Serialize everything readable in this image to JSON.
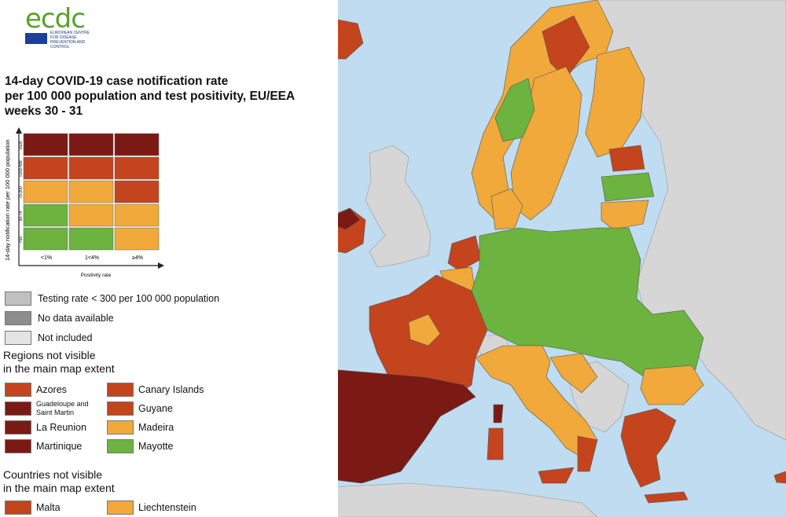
{
  "colors": {
    "sea": "#bfdcf0",
    "dark_red": "#7b1a14",
    "red": "#c4441e",
    "orange": "#f0a93a",
    "green": "#6db33f",
    "grey_testing": "#c0c0c0",
    "grey_nodata": "#8c8c8c",
    "not_included": "#e4e4e4",
    "logo_green": "#5aa02c"
  },
  "logo": {
    "text": "ecdc",
    "subtitle": "EUROPEAN CENTRE FOR DISEASE PREVENTION AND CONTROL"
  },
  "title": {
    "line1": "14-day COVID-19 case notification rate",
    "line2": "per 100 000 population and test positivity, EU/EEA",
    "line3": "weeks 30 - 31"
  },
  "matrix": {
    "y_axis_label": "14-day notification rate per 100 000 population",
    "x_axis_label": "Positivity rate",
    "row_labels": [
      "≥500",
      ">200-499",
      "75-200",
      "50-74",
      "<50"
    ],
    "col_labels": [
      "<1%",
      "1<4%",
      "≥4%"
    ],
    "cells": [
      [
        "dark_red",
        "dark_red",
        "dark_red"
      ],
      [
        "red",
        "red",
        "red"
      ],
      [
        "orange",
        "orange",
        "red"
      ],
      [
        "green",
        "orange",
        "orange"
      ],
      [
        "green",
        "green",
        "orange"
      ]
    ]
  },
  "legend": {
    "testing": "Testing rate < 300 per 100 000 population",
    "no_data": "No data available",
    "not_included": "Not included"
  },
  "regions": {
    "heading_line1": "Regions not visible",
    "heading_line2": "in the main map extent",
    "items": [
      {
        "name": "Azores",
        "color": "red"
      },
      {
        "name": "Canary Islands",
        "color": "red"
      },
      {
        "name": "Guadeloupe and Saint Martin",
        "color": "dark_red"
      },
      {
        "name": "Guyane",
        "color": "red"
      },
      {
        "name": "La Reunion",
        "color": "dark_red"
      },
      {
        "name": "Madeira",
        "color": "orange"
      },
      {
        "name": "Martinique",
        "color": "dark_red"
      },
      {
        "name": "Mayotte",
        "color": "green"
      }
    ]
  },
  "countries": {
    "heading_line1": "Countries not visible",
    "heading_line2": "in the main map extent",
    "items": [
      {
        "name": "Malta",
        "color": "red"
      },
      {
        "name": "Liechtenstein",
        "color": "orange"
      }
    ]
  }
}
